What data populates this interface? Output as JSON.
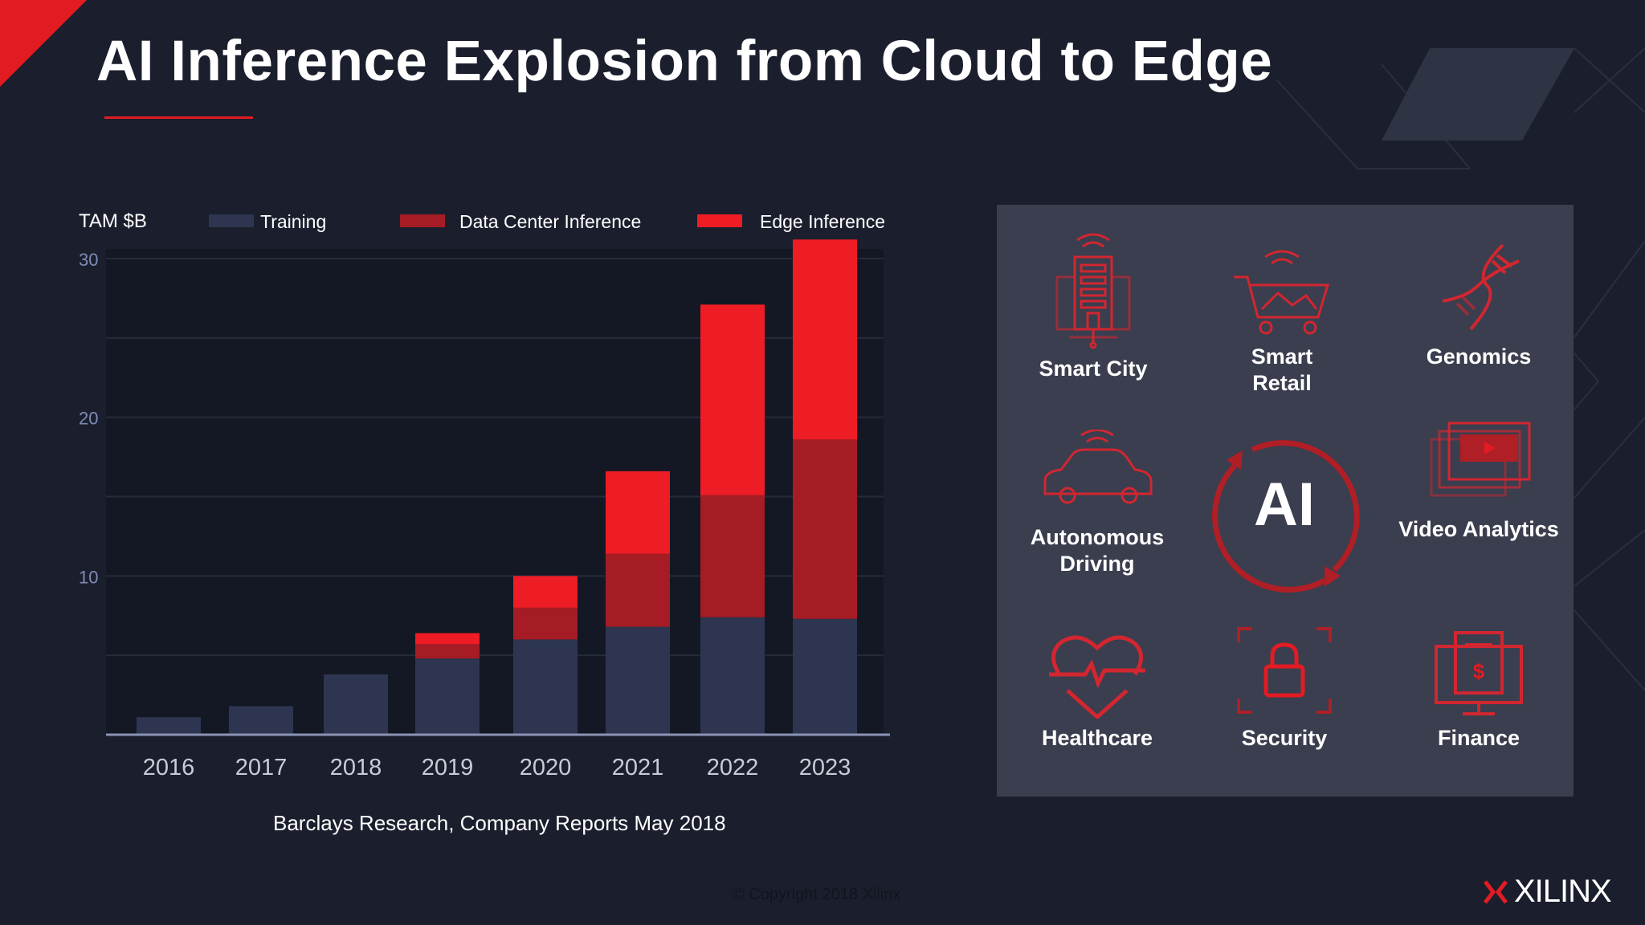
{
  "slide": {
    "title": "AI Inference Explosion from Cloud to Edge",
    "source": "Barclays Research, Company Reports May 2018",
    "copyright": "© Copyright 2018 Xilinx",
    "logo_text": "XILINX"
  },
  "colors": {
    "background": "#1b1f2d",
    "training": "#2e3550",
    "dc_inference": "#a51c24",
    "edge_inference": "#ee1c25",
    "accent_red": "#e31b23",
    "panel": "#3a3e4e"
  },
  "chart_data": {
    "type": "bar",
    "stacked": true,
    "ylabel": "TAM $B",
    "categories": [
      "2016",
      "2017",
      "2018",
      "2019",
      "2020",
      "2021",
      "2022",
      "2023"
    ],
    "ylim": [
      0,
      31
    ],
    "y_ticks": [
      "10",
      "20",
      "30"
    ],
    "grid": true,
    "legend_position": "top",
    "series": [
      {
        "name": "Training",
        "color": "#2e3550",
        "values": [
          1.1,
          1.8,
          3.8,
          4.8,
          6.0,
          6.8,
          7.4,
          7.3
        ]
      },
      {
        "name": "Data Center Inference",
        "color": "#a51c24",
        "values": [
          0,
          0,
          0,
          0.9,
          2.0,
          4.6,
          7.7,
          11.3
        ]
      },
      {
        "name": "Edge Inference",
        "color": "#ee1c25",
        "values": [
          0,
          0,
          0,
          0.7,
          2.0,
          5.2,
          12.0,
          12.6
        ]
      }
    ]
  },
  "applications": {
    "center_label": "AI",
    "items": [
      {
        "label": "Smart City",
        "icon": "smart-city-icon"
      },
      {
        "label": "Smart\nRetail",
        "icon": "shopping-cart-icon"
      },
      {
        "label": "Genomics",
        "icon": "dna-icon"
      },
      {
        "label": "Autonomous\nDriving",
        "icon": "car-icon"
      },
      {
        "label": "Video Analytics",
        "icon": "video-screen-icon"
      },
      {
        "label": "Healthcare",
        "icon": "heart-pulse-icon"
      },
      {
        "label": "Security",
        "icon": "lock-icon"
      },
      {
        "label": "Finance",
        "icon": "finance-monitor-icon"
      }
    ]
  }
}
